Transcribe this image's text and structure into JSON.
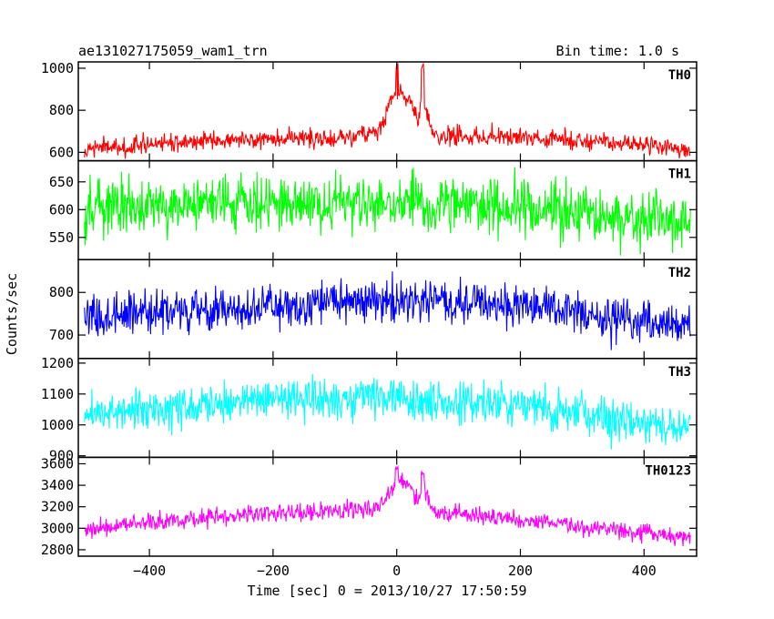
{
  "header": {
    "title": "ae131027175059_wam1_trn",
    "bin_time": "Bin time: 1.0 s"
  },
  "chart_data": {
    "type": "line",
    "xlabel": "Time [sec] 0 = 2013/10/27 17:50:59",
    "ylabel": "Counts/sec",
    "xlim": [
      -515,
      485
    ],
    "xticks": [
      -400,
      -200,
      0,
      200,
      400
    ],
    "x_range": [
      -505,
      475
    ],
    "x_step": 1,
    "grid": false,
    "panels": [
      {
        "name": "TH0",
        "color": "#ff0000",
        "ylim": [
          560,
          1030
        ],
        "yticks": [
          600,
          800,
          1000
        ],
        "profile": [
          [
            -505,
            615
          ],
          [
            -300,
            660
          ],
          [
            -100,
            665
          ],
          [
            -30,
            690
          ],
          [
            0,
            900
          ],
          [
            20,
            850
          ],
          [
            35,
            760
          ],
          [
            42,
            850
          ],
          [
            60,
            680
          ],
          [
            200,
            670
          ],
          [
            400,
            635
          ],
          [
            475,
            610
          ]
        ],
        "noise": 40,
        "peaks": [
          [
            0,
            1030
          ],
          [
            42,
            1030
          ]
        ]
      },
      {
        "name": "TH1",
        "color": "#00ff00",
        "ylim": [
          510,
          688
        ],
        "yticks": [
          550,
          600,
          650
        ],
        "profile": [
          [
            -505,
            600
          ],
          [
            -200,
            610
          ],
          [
            0,
            612
          ],
          [
            200,
            600
          ],
          [
            475,
            575
          ]
        ],
        "noise": 45
      },
      {
        "name": "TH2",
        "color": "#0000ff",
        "ylim": [
          645,
          877
        ],
        "yticks": [
          700,
          800
        ],
        "profile": [
          [
            -505,
            745
          ],
          [
            -200,
            770
          ],
          [
            0,
            785
          ],
          [
            200,
            770
          ],
          [
            475,
            715
          ]
        ],
        "noise": 45
      },
      {
        "name": "TH3",
        "color": "#00ffff",
        "ylim": [
          895,
          1215
        ],
        "yticks": [
          900,
          1000,
          1100,
          1200
        ],
        "profile": [
          [
            -505,
            1040
          ],
          [
            -200,
            1080
          ],
          [
            0,
            1090
          ],
          [
            200,
            1060
          ],
          [
            475,
            990
          ]
        ],
        "noise": 60
      },
      {
        "name": "TH0123",
        "color": "#ff00ff",
        "ylim": [
          2740,
          3660
        ],
        "yticks": [
          2800,
          3000,
          3200,
          3400,
          3600
        ],
        "profile": [
          [
            -505,
            3000
          ],
          [
            -200,
            3140
          ],
          [
            -30,
            3180
          ],
          [
            0,
            3450
          ],
          [
            20,
            3420
          ],
          [
            35,
            3250
          ],
          [
            42,
            3400
          ],
          [
            60,
            3150
          ],
          [
            200,
            3080
          ],
          [
            400,
            2960
          ],
          [
            475,
            2900
          ]
        ],
        "noise": 75,
        "peaks": [
          [
            0,
            3580
          ],
          [
            42,
            3540
          ]
        ]
      }
    ]
  }
}
